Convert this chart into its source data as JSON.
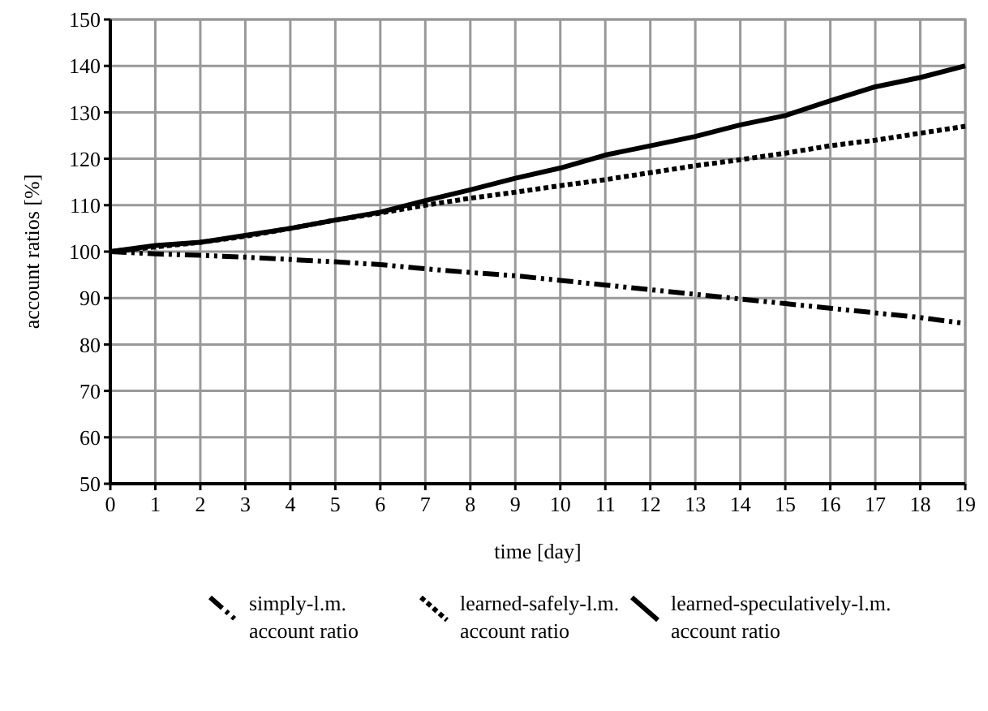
{
  "chart_data": {
    "type": "line",
    "xlabel": "time [day]",
    "ylabel": "account ratios [%]",
    "x": [
      0,
      1,
      2,
      3,
      4,
      5,
      6,
      7,
      8,
      9,
      10,
      11,
      12,
      13,
      14,
      15,
      16,
      17,
      18,
      19
    ],
    "xlim": [
      0,
      19
    ],
    "xticks": [
      0,
      1,
      2,
      3,
      4,
      5,
      6,
      7,
      8,
      9,
      10,
      11,
      12,
      13,
      14,
      15,
      16,
      17,
      18,
      19
    ],
    "ylim": [
      50,
      150
    ],
    "yticks": [
      50,
      60,
      70,
      80,
      90,
      100,
      110,
      120,
      130,
      140,
      150
    ],
    "grid": true,
    "legend": "bottom",
    "marker": "none",
    "series": [
      {
        "name": "simply-l.m. account ratio",
        "color": "#000000",
        "line_style": "dashed",
        "values": [
          100,
          99.5,
          99.2,
          98.8,
          98.3,
          97.8,
          97.2,
          96.3,
          95.5,
          94.8,
          93.8,
          92.8,
          91.8,
          90.8,
          89.8,
          88.8,
          87.8,
          86.8,
          85.8,
          84.5
        ]
      },
      {
        "name": "learned-safely-l.m. account ratio",
        "color": "#000000",
        "line_style": "dotted",
        "values": [
          100,
          101,
          102,
          103.3,
          105,
          106.8,
          108.3,
          110,
          111.5,
          112.8,
          114.2,
          115.5,
          117,
          118.5,
          119.8,
          121.2,
          122.8,
          124,
          125.5,
          127
        ]
      },
      {
        "name": "learned-speculatively-l.m. account ratio",
        "color": "#000000",
        "line_style": "solid",
        "values": [
          100,
          101.3,
          102,
          103.5,
          105,
          106.8,
          108.5,
          111,
          113.3,
          115.8,
          118,
          120.8,
          122.8,
          124.8,
          127.3,
          129.3,
          132.5,
          135.5,
          137.5,
          140
        ]
      }
    ]
  }
}
